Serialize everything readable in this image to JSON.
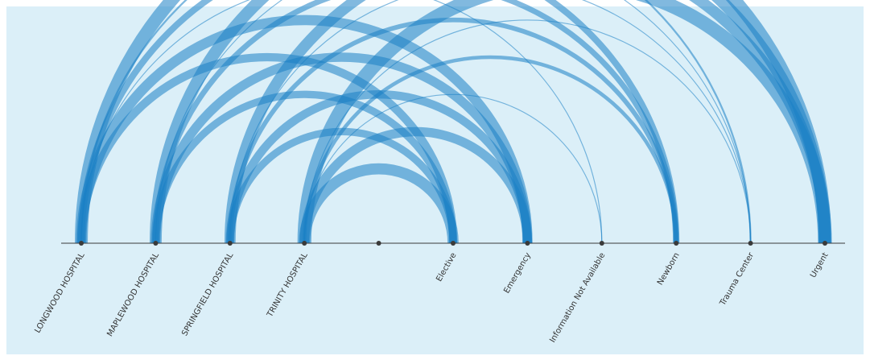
{
  "nodes": [
    {
      "id": "longwood",
      "label": "LONGWOOD HOSPITAL"
    },
    {
      "id": "maplewood",
      "label": "MAPLEWOOD HOSPITAL"
    },
    {
      "id": "springfield",
      "label": "SPRINGFIELD HOSPITAL"
    },
    {
      "id": "trinity",
      "label": "TRINITY HOSPITAL"
    },
    {
      "id": "blank",
      "label": ""
    },
    {
      "id": "elective",
      "label": "Elective"
    },
    {
      "id": "emergency",
      "label": "Emergency"
    },
    {
      "id": "info_na",
      "label": "Information Not Available"
    },
    {
      "id": "newborn",
      "label": "Newborn"
    },
    {
      "id": "trauma",
      "label": "Trauma Center"
    },
    {
      "id": "urgent",
      "label": "Urgent"
    }
  ],
  "links": [
    {
      "source": "longwood",
      "target": "elective",
      "value": 9
    },
    {
      "source": "longwood",
      "target": "emergency",
      "value": 11
    },
    {
      "source": "longwood",
      "target": "info_na",
      "value": 1
    },
    {
      "source": "longwood",
      "target": "newborn",
      "value": 7
    },
    {
      "source": "longwood",
      "target": "trauma",
      "value": 2
    },
    {
      "source": "longwood",
      "target": "urgent",
      "value": 14
    },
    {
      "source": "maplewood",
      "target": "elective",
      "value": 8
    },
    {
      "source": "maplewood",
      "target": "emergency",
      "value": 10
    },
    {
      "source": "maplewood",
      "target": "newborn",
      "value": 6
    },
    {
      "source": "maplewood",
      "target": "trauma",
      "value": 1
    },
    {
      "source": "maplewood",
      "target": "urgent",
      "value": 13
    },
    {
      "source": "springfield",
      "target": "elective",
      "value": 8
    },
    {
      "source": "springfield",
      "target": "emergency",
      "value": 9
    },
    {
      "source": "springfield",
      "target": "newborn",
      "value": 5
    },
    {
      "source": "springfield",
      "target": "trauma",
      "value": 1
    },
    {
      "source": "springfield",
      "target": "urgent",
      "value": 12
    },
    {
      "source": "trinity",
      "target": "elective",
      "value": 12
    },
    {
      "source": "trinity",
      "target": "emergency",
      "value": 10
    },
    {
      "source": "trinity",
      "target": "info_na",
      "value": 1
    },
    {
      "source": "trinity",
      "target": "newborn",
      "value": 4
    },
    {
      "source": "trinity",
      "target": "trauma",
      "value": 1
    },
    {
      "source": "trinity",
      "target": "urgent",
      "value": 15
    }
  ],
  "colors": {
    "arc": "#1a7fc4",
    "background": "#dbeff8",
    "node": "#3a3a3a"
  }
}
